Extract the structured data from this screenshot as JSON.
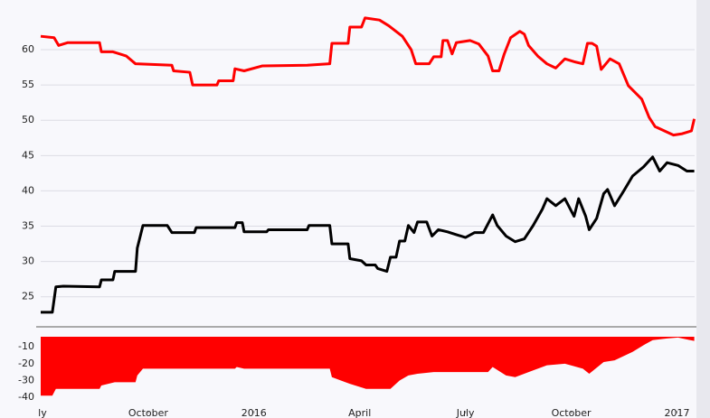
{
  "chart_data": [
    {
      "type": "line",
      "xlim": [
        -0.05,
        18.5
      ],
      "ylim": [
        21,
        66.4
      ],
      "yticks": [
        25,
        30,
        35,
        40,
        45,
        50,
        55,
        60
      ],
      "grid": true,
      "series": [
        {
          "color": "#ff0000",
          "x": [
            -0.05,
            0.33,
            0.46,
            0.72,
            1.62,
            1.67,
            2,
            2.38,
            2.64,
            3.67,
            3.72,
            4.18,
            4.26,
            4.95,
            5,
            5.41,
            5.46,
            5.72,
            6.23,
            7.51,
            8.15,
            8.21,
            8.67,
            8.72,
            9.05,
            9.15,
            9.56,
            9.82,
            10.21,
            10.46,
            10.59,
            10.97,
            11.1,
            11.31,
            11.36,
            11.49,
            11.62,
            11.74,
            12.13,
            12.38,
            12.64,
            12.77,
            12.95,
            13.1,
            13.28,
            13.54,
            13.67,
            13.79,
            14.05,
            14.31,
            14.56,
            14.82,
            15.08,
            15.33,
            15.46,
            15.59,
            15.72,
            15.85,
            16.1,
            16.36,
            16.62,
            17,
            17.21,
            17.38,
            17.9,
            18.15,
            18.41,
            18.49
          ],
          "values": [
            61.9,
            61.7,
            60.6,
            61,
            61,
            59.7,
            59.7,
            59.1,
            58,
            57.8,
            57,
            56.8,
            55,
            55,
            55.6,
            55.6,
            57.3,
            57,
            57.7,
            57.8,
            58,
            60.9,
            60.9,
            63.2,
            63.2,
            64.5,
            64.2,
            63.4,
            61.9,
            60,
            58,
            58,
            59,
            59,
            61.3,
            61.3,
            59.4,
            61,
            61.3,
            60.8,
            59.1,
            57,
            57,
            59.4,
            61.7,
            62.6,
            62.2,
            60.6,
            59.1,
            58,
            57.4,
            58.7,
            58.3,
            58,
            60.9,
            60.9,
            60.5,
            57.2,
            58.7,
            58,
            54.9,
            53,
            50.4,
            49.1,
            47.9,
            48.1,
            48.5,
            50.2
          ]
        },
        {
          "color": "#000000",
          "x": [
            -0.05,
            0.28,
            0.38,
            0.59,
            1.62,
            1.67,
            2,
            2.05,
            2.64,
            2.69,
            2.85,
            3.54,
            3.67,
            4.31,
            4.36,
            5.46,
            5.51,
            5.67,
            5.72,
            6.36,
            6.41,
            7.51,
            7.56,
            8.15,
            8.21,
            8.67,
            8.72,
            9.05,
            9.18,
            9.44,
            9.51,
            9.77,
            9.87,
            10.03,
            10.13,
            10.28,
            10.38,
            10.54,
            10.64,
            10.9,
            11.05,
            11.23,
            11.49,
            11.74,
            12,
            12.26,
            12.51,
            12.77,
            12.9,
            13.15,
            13.41,
            13.67,
            13.92,
            14.18,
            14.31,
            14.56,
            14.82,
            15.08,
            15.21,
            15.41,
            15.51,
            15.72,
            15.92,
            16.03,
            16.23,
            16.49,
            16.74,
            17.05,
            17.31,
            17.51,
            17.72,
            18.03,
            18.28,
            18.49
          ],
          "values": [
            22.8,
            22.8,
            26.4,
            26.5,
            26.4,
            27.4,
            27.4,
            28.6,
            28.6,
            31.9,
            35.1,
            35.1,
            34.1,
            34.1,
            34.8,
            34.8,
            35.5,
            35.5,
            34.2,
            34.2,
            34.5,
            34.5,
            35.1,
            35.1,
            32.5,
            32.5,
            30.4,
            30.1,
            29.5,
            29.5,
            29,
            28.6,
            30.6,
            30.6,
            32.9,
            32.9,
            35.1,
            34.1,
            35.6,
            35.6,
            33.6,
            34.5,
            34.2,
            33.8,
            33.4,
            34.1,
            34.1,
            36.6,
            35.1,
            33.6,
            32.8,
            33.2,
            35.1,
            37.4,
            38.9,
            37.9,
            38.9,
            36.4,
            38.9,
            36.4,
            34.5,
            36.1,
            39.6,
            40.2,
            37.9,
            40,
            42.1,
            43.4,
            44.8,
            42.8,
            44,
            43.6,
            42.8,
            42.8
          ]
        }
      ]
    },
    {
      "type": "area",
      "xlim": [
        -0.05,
        18.5
      ],
      "ylim": [
        -48,
        -4
      ],
      "yticks": [
        -10,
        -20,
        -30,
        -40
      ],
      "xticks": [
        {
          "value": 0,
          "label": "ly"
        },
        {
          "value": 3,
          "label": "October"
        },
        {
          "value": 6,
          "label": "2016"
        },
        {
          "value": 9,
          "label": "April"
        },
        {
          "value": 12,
          "label": "July"
        },
        {
          "value": 15,
          "label": "October"
        },
        {
          "value": 18,
          "label": "2017"
        }
      ],
      "color": "#ff0000",
      "x": [
        -0.05,
        0.28,
        0.38,
        1.62,
        1.67,
        2.05,
        2.64,
        2.69,
        2.85,
        5.46,
        5.51,
        5.72,
        8.15,
        8.21,
        8.72,
        9.18,
        9.87,
        10.13,
        10.38,
        10.64,
        11.1,
        12.64,
        12.77,
        13.15,
        13.41,
        13.92,
        14.31,
        14.82,
        15.33,
        15.51,
        15.92,
        16.23,
        16.74,
        17.05,
        17.31,
        17.72,
        18.03,
        18.49
      ],
      "values": [
        -39,
        -39,
        -35,
        -35,
        -33,
        -31,
        -31,
        -27,
        -23,
        -23,
        -22,
        -23,
        -23,
        -28,
        -32,
        -35,
        -35,
        -30,
        -27,
        -26,
        -25,
        -25,
        -22,
        -27,
        -28,
        -24,
        -21,
        -20,
        -23,
        -26,
        -19,
        -18,
        -13,
        -9,
        -6,
        -5,
        -4.5,
        -6.5
      ]
    }
  ]
}
